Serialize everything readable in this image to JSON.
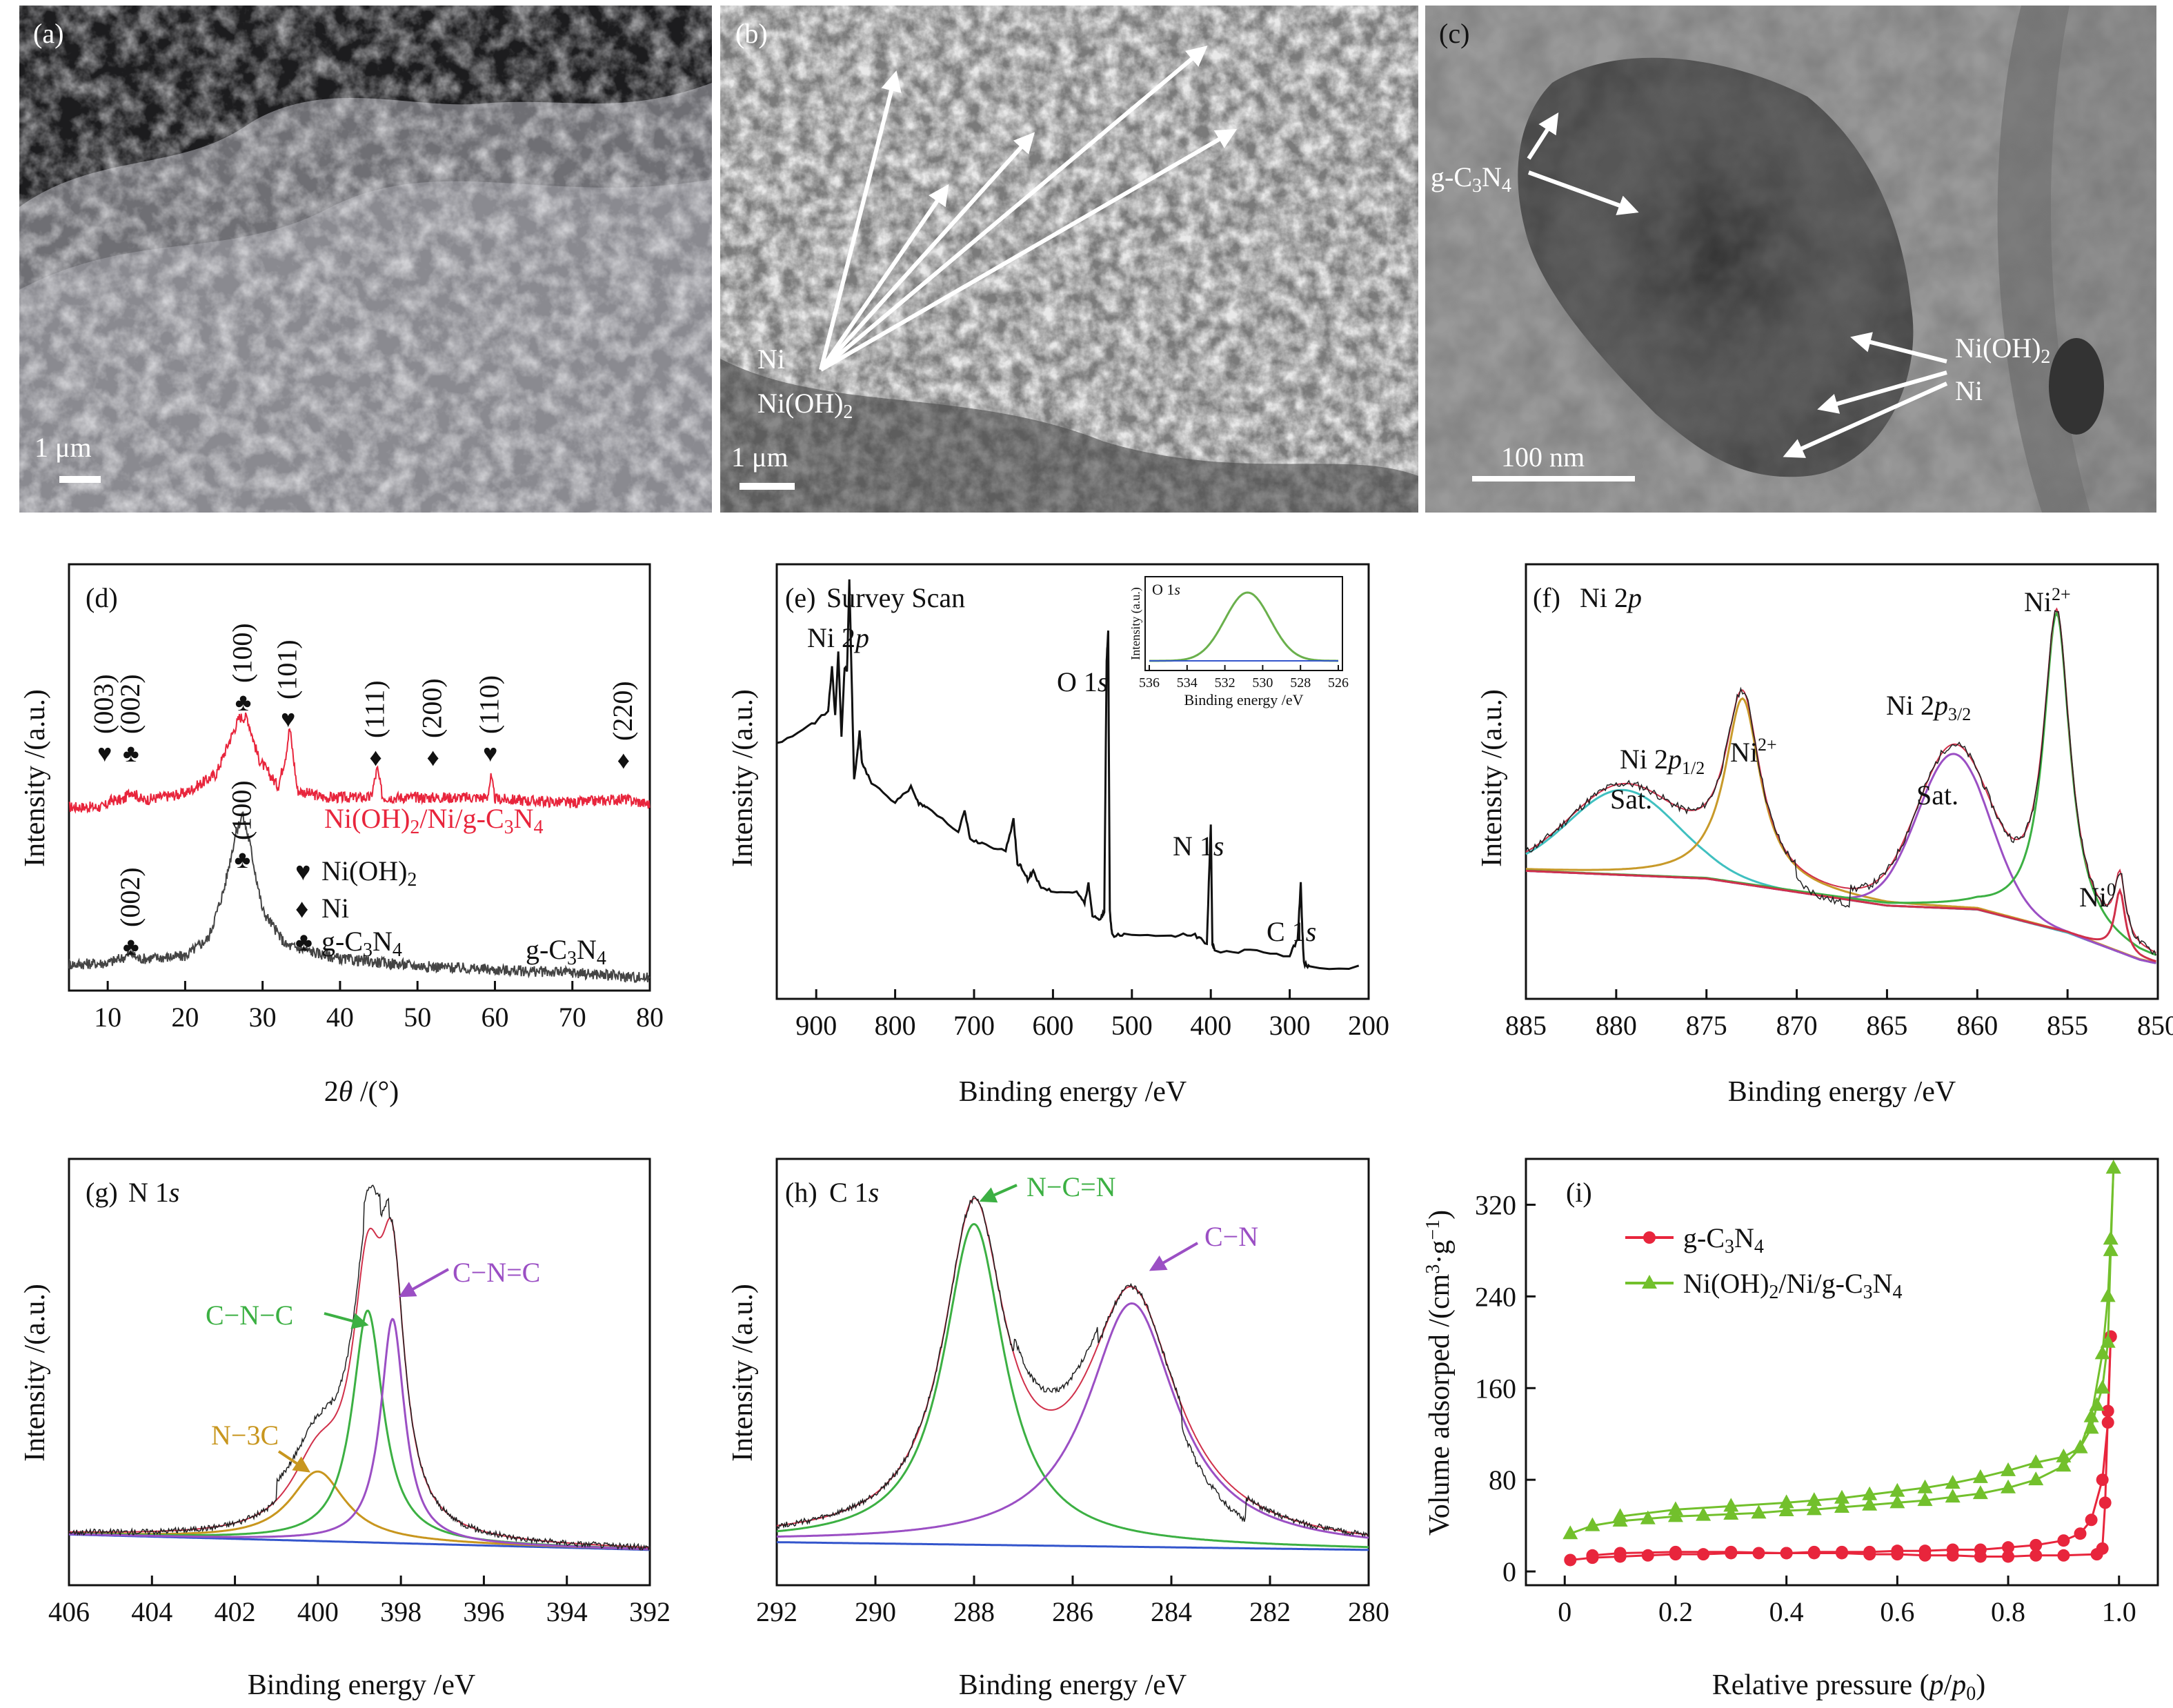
{
  "micrographs": [
    {
      "label": "(a)",
      "scale_bar": "1 μm",
      "annotations": []
    },
    {
      "label": "(b)",
      "scale_bar": "1 μm",
      "annotations": [
        "Ni",
        "Ni(OH)₂"
      ]
    },
    {
      "label": "(c)",
      "scale_bar": "100 nm",
      "annotations": [
        "g-C₃N₄",
        "Ni(OH)₂",
        "Ni"
      ]
    }
  ],
  "chart_data": [
    {
      "panel": "(d)",
      "type": "line",
      "xlabel": "2θ /(°)",
      "ylabel": "Intensity /(a.u.)",
      "xlim": [
        5,
        80
      ],
      "xticks": [
        10,
        20,
        30,
        40,
        50,
        60,
        70,
        80
      ],
      "series": [
        {
          "name": "Ni(OH)₂/Ni/g-C₃N₄",
          "color": "#e8253c",
          "x": [
            5,
            9.5,
            10.5,
            12,
            13,
            14.5,
            20,
            24,
            25.5,
            27,
            28,
            29.5,
            32,
            33,
            33.5,
            34.5,
            38,
            44,
            44.8,
            45.5,
            52,
            59,
            59.5,
            60,
            70,
            76.5,
            80
          ],
          "y": [
            0.9,
            0.9,
            0.95,
            0.95,
            1.02,
            0.95,
            1.0,
            1.14,
            1.35,
            1.55,
            1.55,
            1.25,
            1.05,
            1.28,
            1.48,
            1.02,
            0.97,
            0.97,
            1.18,
            0.97,
            0.97,
            0.97,
            1.12,
            0.96,
            0.93,
            0.96,
            0.92
          ]
        },
        {
          "name": "g-C₃N₄",
          "color": "#444444",
          "x": [
            5,
            10,
            12,
            13,
            14,
            20,
            23,
            25,
            26.5,
            27.4,
            28.3,
            30,
            33,
            40,
            50,
            60,
            70,
            80
          ],
          "y": [
            0.16,
            0.17,
            0.21,
            0.24,
            0.2,
            0.22,
            0.35,
            0.7,
            1.1,
            1.25,
            1.05,
            0.55,
            0.3,
            0.2,
            0.15,
            0.12,
            0.1,
            0.06
          ]
        }
      ],
      "peak_labels": [
        {
          "text": "(003)",
          "marker": "♥",
          "x": 9.6
        },
        {
          "text": "(002)",
          "marker": "♣",
          "x": 13.0
        },
        {
          "text": "(100)",
          "marker": "♣",
          "x": 27.5
        },
        {
          "text": "(101)",
          "marker": "♥",
          "x": 33.3
        },
        {
          "text": "(111)",
          "marker": "♦",
          "x": 44.6
        },
        {
          "text": "(200)",
          "marker": "♦",
          "x": 52.0
        },
        {
          "text": "(110)",
          "marker": "♥",
          "x": 59.4
        },
        {
          "text": "(220)",
          "marker": "♦",
          "x": 76.6
        }
      ],
      "gc3n4_peak_labels": [
        {
          "text": "(002)",
          "marker": "♣",
          "x": 13.0
        },
        {
          "text": "(100)",
          "marker": "♣",
          "x": 27.4
        }
      ],
      "legend": [
        {
          "marker": "♥",
          "text": "Ni(OH)₂"
        },
        {
          "marker": "♦",
          "text": "Ni"
        },
        {
          "marker": "♣",
          "text": "g-C₃N₄"
        }
      ]
    },
    {
      "panel": "(e)",
      "title": "Survey Scan",
      "type": "line",
      "xlabel": "Binding energy /eV",
      "ylabel": "Intensity /(a.u.)",
      "xlim": [
        950,
        200
      ],
      "xticks": [
        900,
        800,
        700,
        600,
        500,
        400,
        300,
        200
      ],
      "series": [
        {
          "name": "",
          "color": "#111111",
          "x": [
            950,
            910,
            885,
            880,
            876,
            872,
            868,
            864,
            861,
            858,
            855,
            852,
            848,
            845,
            842,
            830,
            800,
            780,
            770,
            760,
            720,
            712,
            705,
            690,
            660,
            650,
            645,
            640,
            632,
            625,
            615,
            600,
            570,
            560,
            555,
            550,
            540,
            535,
            532,
            530,
            528,
            525,
            510,
            450,
            420,
            405,
            400,
            398,
            395,
            350,
            300,
            290,
            286,
            284,
            282,
            275,
            200
          ],
          "y": [
            0.57,
            0.61,
            0.65,
            0.76,
            0.64,
            0.8,
            0.59,
            0.76,
            0.75,
            0.98,
            0.72,
            0.48,
            0.54,
            0.6,
            0.52,
            0.47,
            0.42,
            0.46,
            0.42,
            0.41,
            0.35,
            0.4,
            0.33,
            0.32,
            0.3,
            0.38,
            0.27,
            0.26,
            0.23,
            0.25,
            0.21,
            0.2,
            0.2,
            0.17,
            0.22,
            0.14,
            0.13,
            0.15,
            0.78,
            0.85,
            0.15,
            0.09,
            0.09,
            0.09,
            0.09,
            0.07,
            0.37,
            0.07,
            0.05,
            0.05,
            0.04,
            0.08,
            0.22,
            0.1,
            0.02,
            0.01,
            0.01
          ]
        }
      ],
      "peak_labels": [
        {
          "text": "Ni 2p",
          "x": 858
        },
        {
          "text": "O 1s",
          "x": 531
        },
        {
          "text": "N 1s",
          "x": 398
        },
        {
          "text": "C 1s",
          "x": 285
        }
      ],
      "inset": {
        "title": "O 1s",
        "xlabel": "Binding energy /eV",
        "ylabel": "Intensity (a.u.)",
        "xlim": [
          536,
          526
        ],
        "xticks": [
          536,
          534,
          532,
          530,
          528,
          526
        ],
        "series": [
          {
            "name": "",
            "color": "#6ab04c",
            "center": 530.8,
            "width": 1.2,
            "height": 0.9
          },
          {
            "name": "",
            "color": "#3355cc",
            "baseline": 0.02
          }
        ]
      }
    },
    {
      "panel": "(f)",
      "title": "Ni 2p",
      "type": "line",
      "xlabel": "Binding energy /eV",
      "ylabel": "Intensity /(a.u.)",
      "xlim": [
        885,
        850
      ],
      "xticks": [
        885,
        880,
        875,
        870,
        865,
        860,
        855,
        850
      ],
      "background": {
        "x": [
          885,
          875,
          865,
          860,
          855,
          851,
          850
        ],
        "y": [
          0.26,
          0.24,
          0.17,
          0.16,
          0.1,
          0.03,
          0.02
        ]
      },
      "components": [
        {
          "label": "Sat.",
          "color": "#40c0c0",
          "center": 879.6,
          "width": 3.0,
          "height": 0.22
        },
        {
          "label": "Ni²⁺",
          "color": "#c89a2a",
          "center": 873.0,
          "width": 1.2,
          "height": 0.48
        },
        {
          "label": "Sat.",
          "color": "#9b4fc4",
          "center": 861.3,
          "width": 2.0,
          "height": 0.4
        },
        {
          "label": "Ni²⁺",
          "color": "#3cb043",
          "center": 855.6,
          "width": 0.9,
          "height": 0.82
        },
        {
          "label": "Ni⁰",
          "color": "#d0304a",
          "center": 852.1,
          "width": 0.35,
          "height": 0.16
        }
      ],
      "annotations": [
        "Sat.",
        "Ni 2p1/2",
        "Ni²⁺",
        "Ni 2p3/2",
        "Sat.",
        "Ni²⁺",
        "Ni⁰"
      ]
    },
    {
      "panel": "(g)",
      "title": "N 1s",
      "type": "line",
      "xlabel": "Binding energy /eV",
      "ylabel": "Intensity /(a.u.)",
      "xlim": [
        406,
        392
      ],
      "xticks": [
        406,
        404,
        402,
        400,
        398,
        396,
        394,
        392
      ],
      "components": [
        {
          "label": "N−3C",
          "color": "#c8961e",
          "center": 400.0,
          "width": 0.8,
          "height": 0.18
        },
        {
          "label": "C−N−C",
          "color": "#3cb043",
          "center": 398.8,
          "width": 0.45,
          "height": 0.6
        },
        {
          "label": "C−N=C",
          "color": "#9b4fc4",
          "center": 398.2,
          "width": 0.35,
          "height": 0.58
        }
      ]
    },
    {
      "panel": "(h)",
      "title": "C 1s",
      "type": "line",
      "xlabel": "Binding energy /eV",
      "ylabel": "Intensity /(a.u.)",
      "xlim": [
        292,
        280
      ],
      "xticks": [
        292,
        290,
        288,
        286,
        284,
        282,
        280
      ],
      "components": [
        {
          "label": "N−C=N",
          "color": "#3cb043",
          "center": 288.0,
          "width": 0.75,
          "height": 0.83
        },
        {
          "label": "C−N",
          "color": "#9b4fc4",
          "center": 284.8,
          "width": 1.1,
          "height": 0.63
        }
      ]
    },
    {
      "panel": "(i)",
      "type": "scatter",
      "xlabel": "Relative pressure (p/p₀)",
      "ylabel": "Volume adsorped /(cm³·g⁻¹)",
      "xlim": [
        -0.07,
        1.07
      ],
      "ylim": [
        -12,
        360
      ],
      "xticks": [
        0,
        0.2,
        0.4,
        0.6,
        0.8,
        1.0
      ],
      "yticks": [
        0,
        80,
        160,
        240,
        320
      ],
      "series": [
        {
          "name": "g-C₃N₄",
          "color": "#e8253c",
          "marker": "circle",
          "adsorption": {
            "x": [
              0.01,
              0.05,
              0.1,
              0.15,
              0.2,
              0.25,
              0.3,
              0.35,
              0.4,
              0.45,
              0.5,
              0.55,
              0.6,
              0.65,
              0.7,
              0.75,
              0.8,
              0.85,
              0.9,
              0.93,
              0.95,
              0.97,
              0.98,
              0.985
            ],
            "y": [
              10,
              12,
              13,
              14,
              15,
              15,
              16,
              16,
              16,
              17,
              17,
              17,
              18,
              18,
              19,
              19,
              21,
              23,
              27,
              33,
              45,
              80,
              130,
              205
            ]
          },
          "desorption": {
            "x": [
              0.985,
              0.98,
              0.975,
              0.97,
              0.96,
              0.9,
              0.85,
              0.8,
              0.75,
              0.7,
              0.65,
              0.6,
              0.55,
              0.5,
              0.45,
              0.4,
              0.3,
              0.2,
              0.1,
              0.05
            ],
            "y": [
              205,
              140,
              60,
              20,
              15,
              14,
              14,
              13,
              13,
              14,
              14,
              15,
              15,
              16,
              16,
              16,
              17,
              17,
              16,
              14
            ]
          }
        },
        {
          "name": "Ni(OH)₂/Ni/g-C₃N₄",
          "color": "#72c02c",
          "marker": "triangle",
          "adsorption": {
            "x": [
              0.01,
              0.05,
              0.1,
              0.15,
              0.2,
              0.25,
              0.3,
              0.35,
              0.4,
              0.45,
              0.5,
              0.55,
              0.6,
              0.65,
              0.7,
              0.75,
              0.8,
              0.85,
              0.9,
              0.93,
              0.95,
              0.97,
              0.98,
              0.985,
              0.99
            ],
            "y": [
              33,
              40,
              44,
              46,
              48,
              49,
              50,
              51,
              53,
              54,
              56,
              58,
              60,
              62,
              65,
              68,
              73,
              80,
              92,
              108,
              135,
              190,
              240,
              290,
              352
            ]
          },
          "desorption": {
            "x": [
              0.99,
              0.985,
              0.98,
              0.97,
              0.96,
              0.95,
              0.93,
              0.9,
              0.85,
              0.8,
              0.75,
              0.7,
              0.65,
              0.6,
              0.55,
              0.5,
              0.45,
              0.4,
              0.3,
              0.2,
              0.1
            ],
            "y": [
              352,
              280,
              200,
              160,
              145,
              125,
              108,
              100,
              95,
              88,
              82,
              77,
              73,
              70,
              67,
              64,
              62,
              60,
              57,
              54,
              48
            ]
          }
        }
      ],
      "legend": [
        "g-C₃N₄",
        "Ni(OH)₂/Ni/g-C₃N₄"
      ]
    }
  ]
}
